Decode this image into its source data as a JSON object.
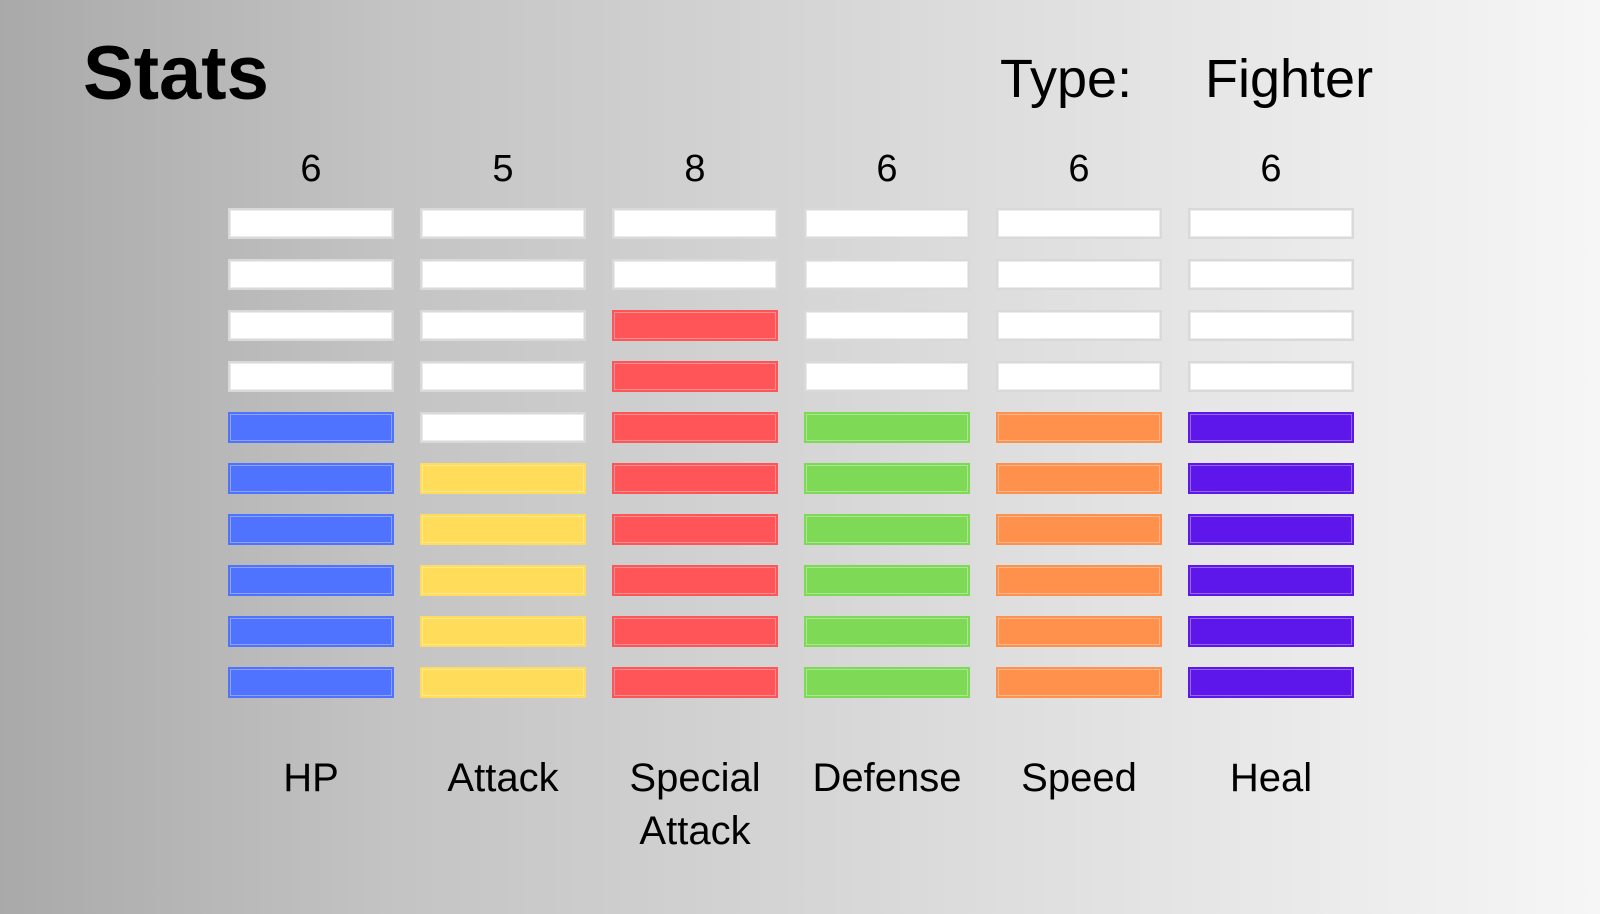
{
  "header": {
    "title": "Stats",
    "type_label": "Type:",
    "type_value": "Fighter"
  },
  "stats": [
    {
      "label": "HP",
      "value": "6",
      "level": 6,
      "max": 10,
      "color": "#4f73ff"
    },
    {
      "label": "Attack",
      "value": "5",
      "level": 5,
      "max": 10,
      "color": "#ffdc5a"
    },
    {
      "label": "Special\nAttack",
      "value": "8",
      "level": 8,
      "max": 10,
      "color": "#ff5558"
    },
    {
      "label": "Defense",
      "value": "6",
      "level": 6,
      "max": 10,
      "color": "#7ed957"
    },
    {
      "label": "Speed",
      "value": "6",
      "level": 6,
      "max": 10,
      "color": "#ff914d"
    },
    {
      "label": "Heal",
      "value": "6",
      "level": 6,
      "max": 10,
      "color": "#5e17eb"
    }
  ]
}
